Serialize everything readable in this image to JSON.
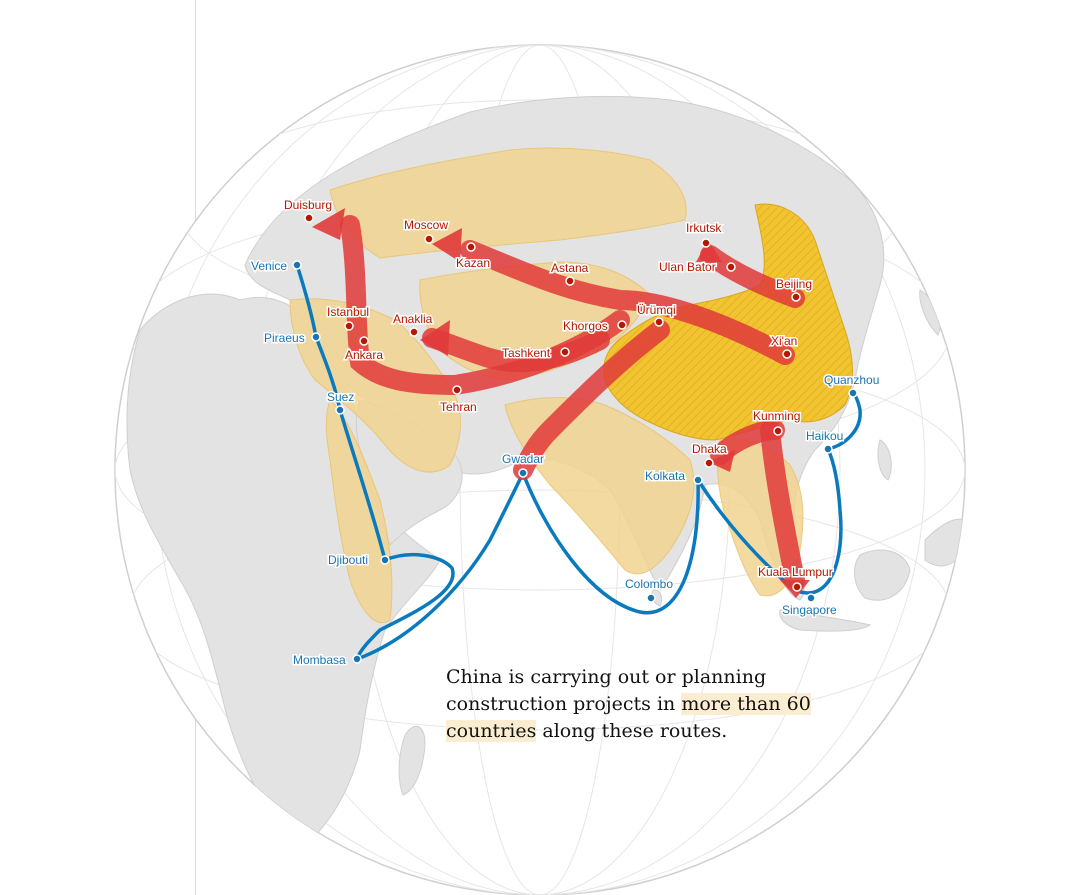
{
  "map": {
    "colors": {
      "ocean": "#ffffff",
      "land": "#e3e3e3",
      "graticule": "#e6e6e6",
      "member_countries": "#f1d490",
      "china": "#f2c431",
      "land_route": "#e03a3a",
      "maritime_route": "#0a7abf",
      "land_label": "#b51800",
      "sea_label": "#1a74b1"
    },
    "land_cities": [
      "Duisburg",
      "Moscow",
      "Kazan",
      "Astana",
      "Irkutsk",
      "Ulan Bator",
      "Beijing",
      "Istanbul",
      "Ankara",
      "Anaklia",
      "Khorgos",
      "Ürümqi",
      "Tashkent",
      "Xi'an",
      "Tehran",
      "Kunming",
      "Dhaka",
      "Kuala Lumpur"
    ],
    "maritime_ports": [
      "Venice",
      "Piraeus",
      "Suez",
      "Quanzhou",
      "Haikou",
      "Gwadar",
      "Kolkata",
      "Djibouti",
      "Colombo",
      "Singapore",
      "Mombasa"
    ]
  },
  "caption": {
    "part1": "China is carrying out or planning construction projects in ",
    "highlight": "more than 60 countries",
    "part2": " along these routes."
  }
}
